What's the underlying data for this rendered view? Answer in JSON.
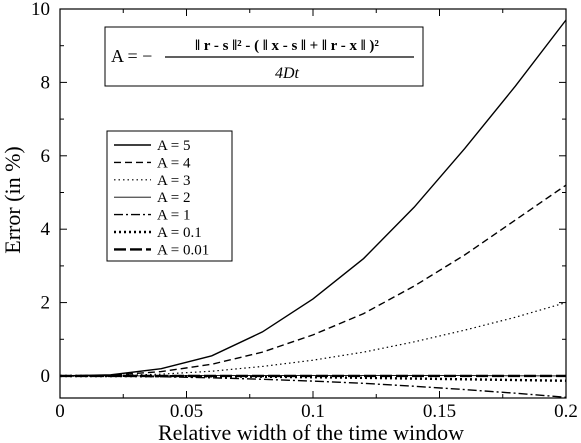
{
  "chart_data": {
    "type": "line",
    "xlabel": "Relative width of the time window",
    "ylabel": "Error (in %)",
    "xlim": [
      0,
      0.2
    ],
    "ylim": [
      -0.6,
      10
    ],
    "x_ticks": [
      "0",
      "0.05",
      "0.1",
      "0.15",
      "0.2"
    ],
    "y_ticks": [
      "0",
      "2",
      "4",
      "6",
      "8",
      "10"
    ],
    "legend_placement": "upper-left",
    "grid": false,
    "formula": {
      "lhs": "A = −",
      "numerator": "‖ r - s ‖² - ( ‖ x - s ‖ + ‖ r - x ‖ )²",
      "denominator": "4Dt"
    },
    "x": [
      0,
      0.02,
      0.04,
      0.06,
      0.08,
      0.1,
      0.12,
      0.14,
      0.16,
      0.18,
      0.2
    ],
    "series": [
      {
        "name": "A = 5",
        "style": "solid",
        "values": [
          0,
          0.03,
          0.2,
          0.55,
          1.2,
          2.1,
          3.2,
          4.6,
          6.2,
          7.9,
          9.7
        ]
      },
      {
        "name": "A = 4",
        "style": "dashed",
        "values": [
          0,
          0.02,
          0.12,
          0.32,
          0.65,
          1.12,
          1.7,
          2.45,
          3.3,
          4.25,
          5.2
        ]
      },
      {
        "name": "A = 3",
        "style": "dotted",
        "values": [
          0,
          0.01,
          0.05,
          0.13,
          0.26,
          0.43,
          0.65,
          0.93,
          1.25,
          1.6,
          2.0
        ]
      },
      {
        "name": "A = 2",
        "style": "thin",
        "values": [
          0,
          0,
          0.005,
          0.01,
          0.012,
          0.015,
          0.015,
          0.012,
          0.01,
          0.005,
          0
        ]
      },
      {
        "name": "A = 1",
        "style": "dashdot",
        "values": [
          0,
          -0.005,
          -0.02,
          -0.05,
          -0.09,
          -0.14,
          -0.2,
          -0.28,
          -0.37,
          -0.47,
          -0.58
        ]
      },
      {
        "name": "A = 0.1",
        "style": "densedot",
        "values": [
          0,
          -0.002,
          -0.005,
          -0.01,
          -0.02,
          -0.035,
          -0.05,
          -0.07,
          -0.09,
          -0.11,
          -0.13
        ]
      },
      {
        "name": "A = 0.01",
        "style": "longdash",
        "values": [
          0,
          0,
          0,
          0,
          0,
          0,
          0,
          0,
          0,
          0,
          0
        ]
      }
    ]
  }
}
